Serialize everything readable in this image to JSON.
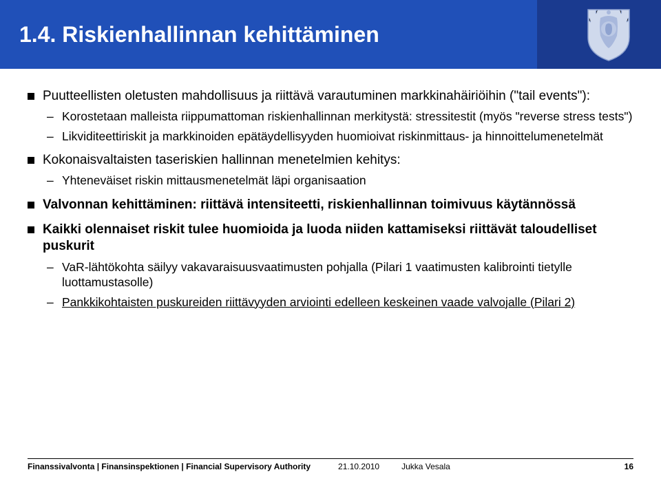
{
  "colors": {
    "header_outer": "#1a3a8f",
    "header_inner": "#2050b8",
    "title_text": "#ffffff",
    "body_text": "#000000",
    "bullet": "#000000",
    "background": "#ffffff"
  },
  "typography": {
    "title_size": 32,
    "bullet_size": 19,
    "sub_size": 17.5,
    "footer_size": 12,
    "family": "Arial"
  },
  "title": "1.4. Riskienhallinnan kehittäminen",
  "bullets": [
    {
      "text": "Puutteellisten oletusten mahdollisuus ja riittävä varautuminen markkinahäiriöihin (\"tail events\"):",
      "bold": false,
      "sub": [
        "Korostetaan malleista riippumattoman riskienhallinnan merkitystä: stressitestit (myös \"reverse stress tests\")",
        "Likviditeettiriskit ja markkinoiden epätäydellisyyden huomioivat riskinmittaus- ja hinnoittelumenetelmät"
      ]
    },
    {
      "text": "Kokonaisvaltaisten taseriskien hallinnan menetelmien kehitys:",
      "bold": false,
      "sub": [
        "Yhteneväiset riskin mittausmenetelmät läpi organisaation"
      ]
    },
    {
      "text": "Valvonnan kehittäminen: riittävä intensiteetti, riskienhallinnan toimivuus käytännössä",
      "bold": true,
      "sub": []
    },
    {
      "text": "Kaikki olennaiset riskit tulee huomioida ja luoda niiden kattamiseksi riittävät taloudelliset puskurit",
      "bold": true,
      "sub": [
        "VaR-lähtökohta säilyy vakavaraisuusvaatimusten pohjalla (Pilari 1 vaatimusten kalibrointi tietylle luottamustasolle)",
        {
          "underline": true,
          "text": "Pankkikohtaisten puskureiden riittävyyden arviointi edelleen keskeinen vaade valvojalle (Pilari 2)"
        }
      ]
    }
  ],
  "footer": {
    "org": "Finanssivalvonta | Finansinspektionen | Financial Supervisory Authority",
    "date": "21.10.2010",
    "author": "Jukka Vesala",
    "page": "16"
  }
}
